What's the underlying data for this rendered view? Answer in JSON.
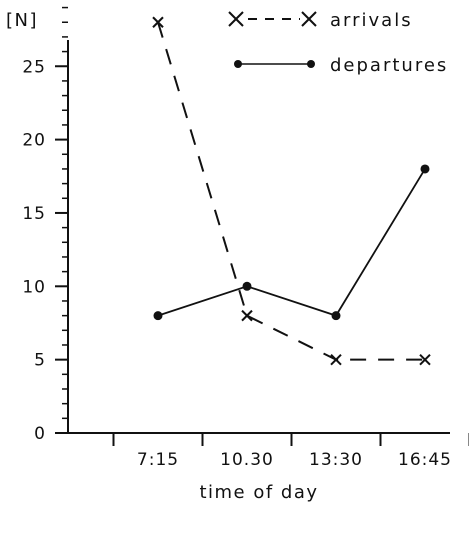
{
  "chart_data": {
    "type": "line",
    "categories": [
      "7:15",
      "10.30",
      "13:30",
      "16:45"
    ],
    "y_ticks": [
      "0",
      "5",
      "10",
      "15",
      "20",
      "25"
    ],
    "ylim": [
      0,
      30
    ],
    "ylabel": "[N]",
    "xlabel": "time of day",
    "grid": false,
    "legend_position": "top-right",
    "series": [
      {
        "name": "arrivals",
        "values": [
          28,
          8,
          5,
          5
        ],
        "line_style": "dashed",
        "marker": "x",
        "color": "#111111"
      },
      {
        "name": "departures",
        "values": [
          8,
          10,
          8,
          18
        ],
        "line_style": "solid",
        "marker": "dot",
        "color": "#111111"
      }
    ]
  }
}
